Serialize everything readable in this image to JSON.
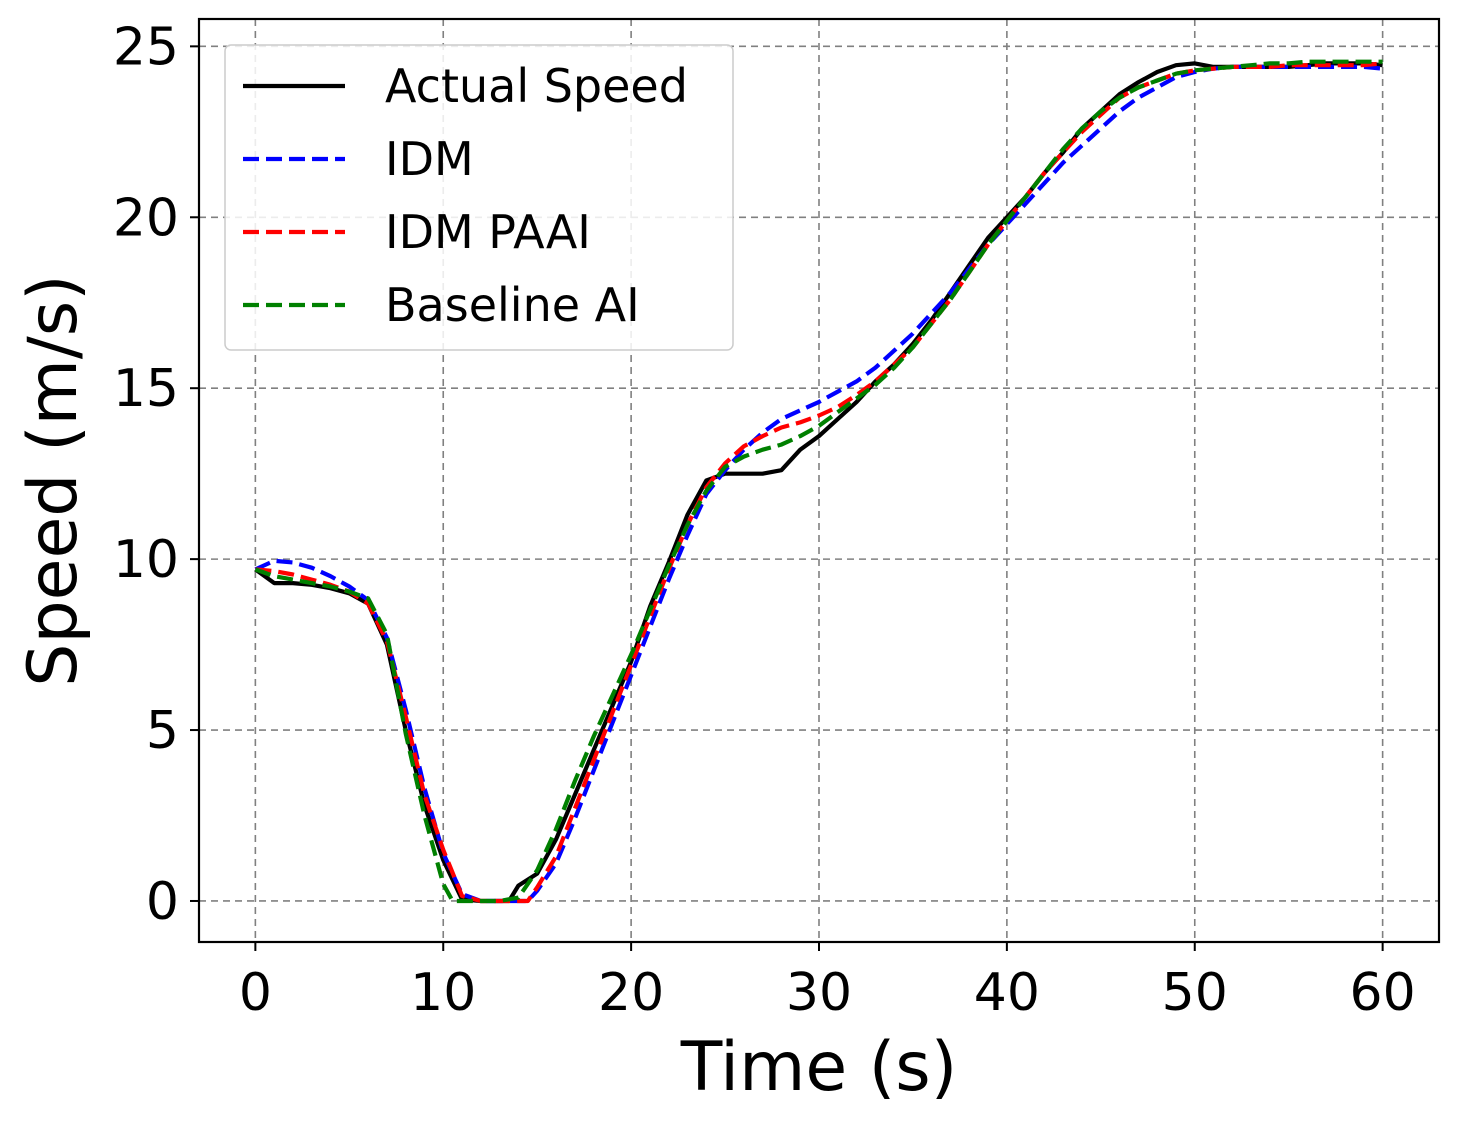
{
  "chart_data": {
    "type": "line",
    "title": "",
    "xlabel": "Time (s)",
    "ylabel": "Speed (m/s)",
    "xlim": [
      -3,
      63
    ],
    "ylim": [
      -1.2,
      25.8
    ],
    "xticks": [
      0,
      10,
      20,
      30,
      40,
      50,
      60
    ],
    "yticks": [
      0,
      5,
      10,
      15,
      20,
      25
    ],
    "grid": true,
    "legend_position": "top-left",
    "series": [
      {
        "name": "Actual Speed",
        "color": "#000000",
        "dash": "solid",
        "x": [
          0,
          1,
          2,
          3,
          4,
          5,
          6,
          7,
          8,
          9,
          10,
          11,
          12,
          13,
          13.5,
          14,
          15,
          16,
          17,
          18,
          19,
          20,
          21,
          22,
          23,
          24,
          25,
          26,
          27,
          28,
          29,
          30,
          31,
          32,
          33,
          34,
          35,
          36,
          37,
          38,
          39,
          40,
          41,
          42,
          43,
          44,
          45,
          46,
          47,
          48,
          49,
          50,
          51,
          52,
          53,
          54,
          55,
          56,
          57,
          58,
          59,
          60
        ],
        "y": [
          9.7,
          9.3,
          9.3,
          9.25,
          9.15,
          9.0,
          8.7,
          7.5,
          5.0,
          2.8,
          1.2,
          0.05,
          0.0,
          0.0,
          0.0,
          0.45,
          0.8,
          1.8,
          3.1,
          4.4,
          5.7,
          7.0,
          8.6,
          9.9,
          11.3,
          12.3,
          12.5,
          12.5,
          12.5,
          12.6,
          13.2,
          13.6,
          14.1,
          14.6,
          15.2,
          15.7,
          16.3,
          17.0,
          17.8,
          18.6,
          19.4,
          20.0,
          20.6,
          21.3,
          21.9,
          22.6,
          23.1,
          23.6,
          23.95,
          24.25,
          24.45,
          24.5,
          24.4,
          24.4,
          24.4,
          24.4,
          24.4,
          24.45,
          24.5,
          24.5,
          24.5,
          24.45
        ]
      },
      {
        "name": "IDM",
        "color": "#0000ff",
        "dash": "dashed",
        "x": [
          0,
          1,
          2,
          3,
          4,
          5,
          6,
          7,
          8,
          9,
          10,
          11,
          12,
          13,
          14,
          14.5,
          15,
          16,
          17,
          18,
          19,
          20,
          21,
          22,
          23,
          24,
          25,
          26,
          27,
          28,
          29,
          30,
          31,
          32,
          33,
          34,
          35,
          36,
          37,
          38,
          39,
          40,
          41,
          42,
          43,
          44,
          45,
          46,
          47,
          48,
          49,
          50,
          51,
          52,
          53,
          54,
          55,
          56,
          57,
          58,
          59,
          60
        ],
        "y": [
          9.7,
          9.95,
          9.9,
          9.75,
          9.5,
          9.2,
          8.8,
          7.7,
          5.6,
          3.3,
          1.4,
          0.2,
          0.0,
          0.0,
          0.0,
          0.0,
          0.3,
          1.1,
          2.4,
          3.8,
          5.2,
          6.6,
          8.0,
          9.4,
          10.7,
          11.9,
          12.6,
          13.2,
          13.7,
          14.1,
          14.35,
          14.6,
          14.9,
          15.2,
          15.6,
          16.1,
          16.6,
          17.2,
          17.8,
          18.5,
          19.2,
          19.8,
          20.4,
          21.0,
          21.6,
          22.1,
          22.6,
          23.1,
          23.5,
          23.8,
          24.1,
          24.25,
          24.35,
          24.4,
          24.4,
          24.4,
          24.4,
          24.4,
          24.4,
          24.4,
          24.4,
          24.35
        ]
      },
      {
        "name": "IDM PAAI",
        "color": "#ff0000",
        "dash": "dashed",
        "x": [
          0,
          1,
          2,
          3,
          4,
          5,
          6,
          7,
          8,
          9,
          10,
          11,
          12,
          13,
          14,
          14.5,
          15,
          16,
          17,
          18,
          19,
          20,
          21,
          22,
          23,
          24,
          25,
          26,
          27,
          28,
          29,
          30,
          31,
          32,
          33,
          34,
          35,
          36,
          37,
          38,
          39,
          40,
          41,
          42,
          43,
          44,
          45,
          46,
          47,
          48,
          49,
          50,
          51,
          52,
          53,
          54,
          55,
          56,
          57,
          58,
          59,
          60
        ],
        "y": [
          9.7,
          9.65,
          9.55,
          9.4,
          9.25,
          9.05,
          8.7,
          7.6,
          5.4,
          3.1,
          1.5,
          0.15,
          0.0,
          0.0,
          0.0,
          0.0,
          0.4,
          1.3,
          2.7,
          4.1,
          5.5,
          6.9,
          8.3,
          9.7,
          11.0,
          12.1,
          12.8,
          13.3,
          13.6,
          13.85,
          14.0,
          14.2,
          14.45,
          14.8,
          15.2,
          15.7,
          16.2,
          16.9,
          17.6,
          18.4,
          19.2,
          19.9,
          20.6,
          21.3,
          21.9,
          22.5,
          23.0,
          23.5,
          23.8,
          24.0,
          24.2,
          24.3,
          24.35,
          24.4,
          24.4,
          24.4,
          24.45,
          24.45,
          24.45,
          24.45,
          24.45,
          24.5
        ]
      },
      {
        "name": "Baseline AI",
        "color": "#008000",
        "dash": "dashed",
        "x": [
          0,
          1,
          2,
          3,
          4,
          5,
          6,
          7,
          8,
          9,
          10,
          10.5,
          11,
          12,
          13,
          14,
          15,
          16,
          17,
          18,
          19,
          20,
          21,
          22,
          23,
          24,
          25,
          26,
          27,
          28,
          29,
          30,
          31,
          32,
          33,
          34,
          35,
          36,
          37,
          38,
          39,
          40,
          41,
          42,
          43,
          44,
          45,
          46,
          47,
          48,
          49,
          50,
          51,
          52,
          53,
          54,
          55,
          56,
          57,
          58,
          59,
          60
        ],
        "y": [
          9.7,
          9.5,
          9.4,
          9.3,
          9.2,
          9.05,
          8.85,
          7.8,
          4.9,
          2.5,
          0.5,
          0.0,
          0.0,
          0.0,
          0.0,
          0.1,
          0.9,
          2.1,
          3.5,
          4.8,
          6.0,
          7.2,
          8.5,
          9.8,
          11.0,
          12.0,
          12.7,
          13.0,
          13.2,
          13.35,
          13.6,
          13.9,
          14.3,
          14.7,
          15.1,
          15.6,
          16.2,
          16.9,
          17.6,
          18.4,
          19.2,
          19.9,
          20.6,
          21.3,
          22.0,
          22.6,
          23.1,
          23.5,
          23.8,
          24.0,
          24.2,
          24.3,
          24.35,
          24.4,
          24.45,
          24.5,
          24.5,
          24.55,
          24.55,
          24.55,
          24.55,
          24.55
        ]
      }
    ]
  }
}
